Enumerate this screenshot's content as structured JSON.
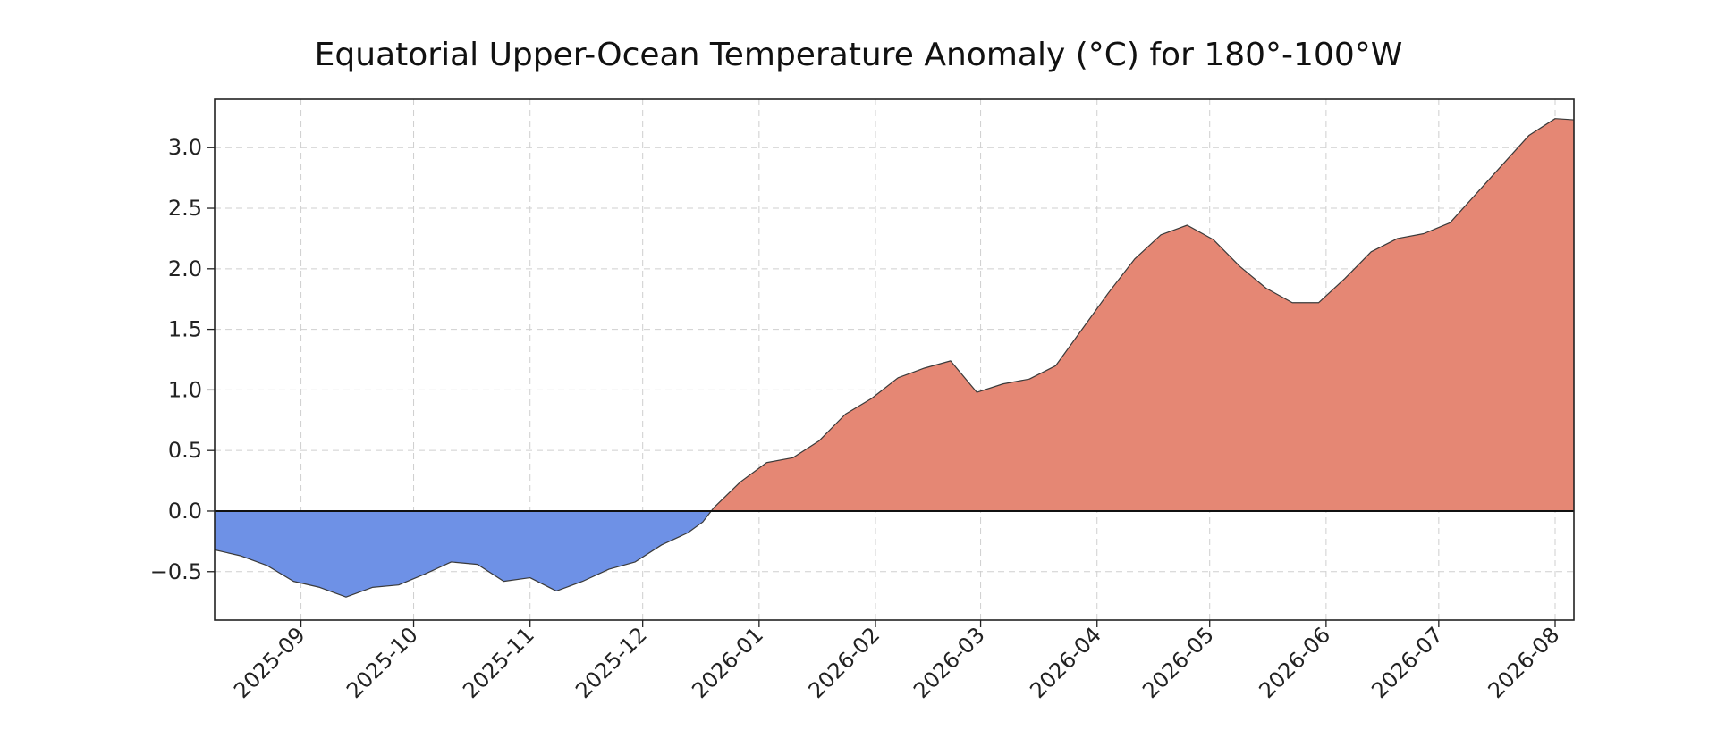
{
  "chart_data": {
    "type": "area",
    "title": "Equatorial Upper-Ocean Temperature Anomaly (°C) for 180°-100°W",
    "xlabel": "",
    "ylabel": "",
    "x_axis": "date",
    "xlim": [
      "2025-08-09",
      "2026-08-06"
    ],
    "ylim": [
      -0.9,
      3.4
    ],
    "grid": true,
    "legend": "none",
    "colors": {
      "positive": "#e58774",
      "negative": "#6e91e6",
      "outline": "#3a3a3a"
    },
    "x_tick_labels": [
      "2025-09",
      "2025-10",
      "2025-11",
      "2025-12",
      "2026-01",
      "2026-02",
      "2026-03",
      "2026-04",
      "2026-05",
      "2026-06",
      "2026-07",
      "2026-08"
    ],
    "y_tick_labels": [
      "−0.5",
      "0.0",
      "0.5",
      "1.0",
      "1.5",
      "2.0",
      "2.5",
      "3.0"
    ],
    "series": [
      {
        "x": [
          "2025-08-09",
          "2025-08-16",
          "2025-08-23",
          "2025-08-30",
          "2025-09-06",
          "2025-09-13",
          "2025-09-20",
          "2025-09-27",
          "2025-10-04",
          "2025-10-11",
          "2025-10-18",
          "2025-10-25",
          "2025-11-01",
          "2025-11-08",
          "2025-11-15",
          "2025-11-22",
          "2025-11-29",
          "2025-12-06",
          "2025-12-13",
          "2025-12-17",
          "2025-12-20",
          "2025-12-27",
          "2026-01-03",
          "2026-01-10",
          "2026-01-17",
          "2026-01-24",
          "2026-01-31",
          "2026-02-07",
          "2026-02-14",
          "2026-02-21",
          "2026-02-28",
          "2026-03-07",
          "2026-03-14",
          "2026-03-21",
          "2026-03-28",
          "2026-04-04",
          "2026-04-11",
          "2026-04-18",
          "2026-04-25",
          "2026-05-02",
          "2026-05-09",
          "2026-05-16",
          "2026-05-23",
          "2026-05-30",
          "2026-06-06",
          "2026-06-13",
          "2026-06-20",
          "2026-06-27",
          "2026-07-04",
          "2026-07-11",
          "2026-07-18",
          "2026-07-25",
          "2026-08-01",
          "2026-08-06"
        ],
        "values": [
          -0.32,
          -0.37,
          -0.45,
          -0.58,
          -0.63,
          -0.71,
          -0.63,
          -0.61,
          -0.52,
          -0.42,
          -0.44,
          -0.58,
          -0.55,
          -0.66,
          -0.58,
          -0.48,
          -0.42,
          -0.28,
          -0.18,
          -0.09,
          0.03,
          0.24,
          0.4,
          0.44,
          0.58,
          0.8,
          0.93,
          1.1,
          1.18,
          1.24,
          0.98,
          1.05,
          1.09,
          1.2,
          1.5,
          1.8,
          2.08,
          2.28,
          2.36,
          2.24,
          2.02,
          1.84,
          1.72,
          1.72,
          1.92,
          2.14,
          2.25,
          2.29,
          2.38,
          2.62,
          2.86,
          3.1,
          3.24,
          3.23
        ]
      }
    ]
  }
}
